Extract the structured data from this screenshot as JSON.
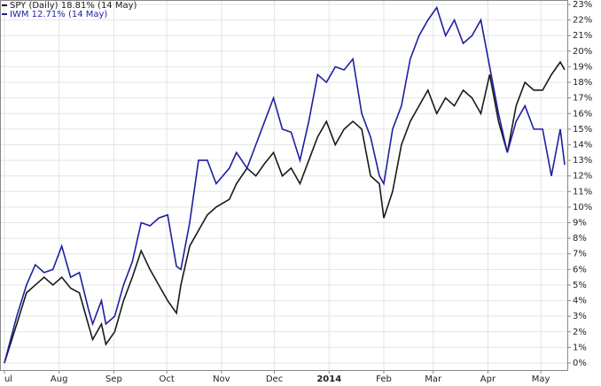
{
  "chart_data": {
    "type": "line",
    "x": [
      0,
      7,
      12.5,
      17.5,
      22.5,
      27.5,
      32.5,
      37.5,
      42.5,
      47.5,
      50,
      55,
      57.5,
      62.5,
      67.5,
      72.5,
      77.5,
      82.5,
      87.5,
      92.5,
      97.5,
      100,
      105,
      110,
      115,
      120,
      127.5,
      131.5,
      137.5,
      142.5,
      147.5,
      152.5,
      157.5,
      162.5,
      167.5,
      172.5,
      177.5,
      182.5,
      187.5,
      192.5,
      197.5,
      202.5,
      207.5,
      212.5,
      215,
      220,
      225,
      230,
      235,
      240,
      245,
      250,
      255,
      260,
      265,
      270,
      275,
      280,
      285,
      290,
      295,
      300,
      305,
      310,
      315,
      317.5
    ],
    "series": [
      {
        "name": "SPY (Daily) 18.81% (14 May)",
        "color": "#1a1a1a",
        "values": [
          0,
          2.5,
          4.5,
          5.0,
          5.5,
          5.0,
          5.5,
          4.8,
          4.5,
          2.5,
          1.5,
          2.5,
          1.2,
          2.0,
          4.0,
          5.5,
          7.2,
          6.0,
          5.0,
          4.0,
          3.2,
          5.0,
          7.5,
          8.5,
          9.5,
          10.0,
          10.5,
          11.5,
          12.5,
          12.0,
          12.8,
          13.5,
          12.0,
          12.5,
          11.5,
          13.0,
          14.5,
          15.5,
          14.0,
          15.0,
          15.5,
          15.0,
          12.0,
          11.5,
          9.3,
          11.0,
          14.0,
          15.5,
          16.5,
          17.5,
          16.0,
          17.0,
          16.5,
          17.5,
          17.0,
          16.0,
          18.5,
          15.5,
          13.5,
          16.5,
          18.0,
          17.5,
          17.5,
          18.5,
          19.3,
          18.81
        ]
      },
      {
        "name": "IWM 12.71% (14 May)",
        "color": "#1f1fa0",
        "values": [
          0,
          3.0,
          5.0,
          6.3,
          5.8,
          6.0,
          7.5,
          5.5,
          5.8,
          3.5,
          2.5,
          4.0,
          2.5,
          3.0,
          5.0,
          6.5,
          9.0,
          8.8,
          9.3,
          9.5,
          6.2,
          6.0,
          9.0,
          13.0,
          13.0,
          11.5,
          12.5,
          13.5,
          12.5,
          14.0,
          15.5,
          17.0,
          15.0,
          14.8,
          13.0,
          15.5,
          18.5,
          18.0,
          19.0,
          18.8,
          19.5,
          16.0,
          14.5,
          12.0,
          11.5,
          15.0,
          16.5,
          19.5,
          21.0,
          22.0,
          22.8,
          21.0,
          22.0,
          20.5,
          21.0,
          22.0,
          19.0,
          16.0,
          13.5,
          15.5,
          16.5,
          15.0,
          15.0,
          12.0,
          15.0,
          12.71
        ]
      }
    ],
    "xlim": [
      -2.5,
      319
    ],
    "xticks": [
      {
        "value": 0,
        "label": "ul"
      },
      {
        "value": 31,
        "label": "Aug"
      },
      {
        "value": 62,
        "label": "Sep"
      },
      {
        "value": 92,
        "label": "Oct"
      },
      {
        "value": 123,
        "label": "Nov"
      },
      {
        "value": 153,
        "label": "Dec"
      },
      {
        "value": 184,
        "label": "2014"
      },
      {
        "value": 215,
        "label": "Feb"
      },
      {
        "value": 243,
        "label": "Mar"
      },
      {
        "value": 274,
        "label": "Apr"
      },
      {
        "value": 304,
        "label": "May"
      }
    ],
    "ylim": [
      0,
      23
    ],
    "yticks": [
      {
        "value": 0,
        "label": "0%"
      },
      {
        "value": 1,
        "label": "1%"
      },
      {
        "value": 2,
        "label": "2%"
      },
      {
        "value": 3,
        "label": "3%"
      },
      {
        "value": 4,
        "label": "4%"
      },
      {
        "value": 5,
        "label": "5%"
      },
      {
        "value": 6,
        "label": "6%"
      },
      {
        "value": 7,
        "label": "7%"
      },
      {
        "value": 8,
        "label": "8%"
      },
      {
        "value": 9,
        "label": "9%"
      },
      {
        "value": 10,
        "label": "10%"
      },
      {
        "value": 11,
        "label": "11%"
      },
      {
        "value": 12,
        "label": "12%"
      },
      {
        "value": 13,
        "label": "13%"
      },
      {
        "value": 14,
        "label": "14%"
      },
      {
        "value": 15,
        "label": "15%"
      },
      {
        "value": 16,
        "label": "16%"
      },
      {
        "value": 17,
        "label": "17%"
      },
      {
        "value": 18,
        "label": "18%"
      },
      {
        "value": 19,
        "label": "19%"
      },
      {
        "value": 20,
        "label": "20%"
      },
      {
        "value": 21,
        "label": "21%"
      },
      {
        "value": 22,
        "label": "22%"
      },
      {
        "value": 23,
        "label": "23%"
      }
    ],
    "grid": true,
    "legend": "top-left"
  }
}
